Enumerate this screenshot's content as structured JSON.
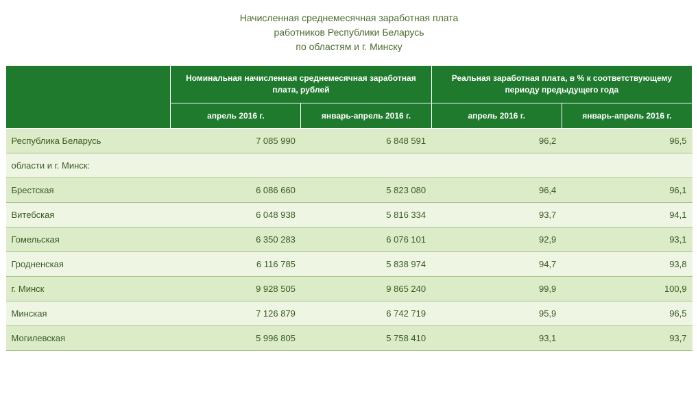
{
  "title": {
    "line1": "Начисленная среднемесячная заработная плата",
    "line2": "работников Республики Беларусь",
    "line3": "по областям и г. Минску"
  },
  "table": {
    "type": "table",
    "header_bg": "#1f7a2e",
    "header_fg": "#ffffff",
    "row_even_bg": "#dcebc8",
    "row_odd_bg": "#eef5e3",
    "border_color": "#a8c48c",
    "text_color": "#3a5a24",
    "font_size_header": 12,
    "font_size_body": 13,
    "group_headers": [
      "Номинальная начисленная  среднемесячная заработная плата, рублей",
      "Реальная заработная плата, в % к соответствующему периоду предыдущего года"
    ],
    "sub_headers": [
      "апрель 2016 г.",
      "январь-апрель 2016 г.",
      "апрель 2016 г.",
      "январь-апрель 2016 г."
    ],
    "columns_align": [
      "left",
      "right",
      "right",
      "right",
      "right"
    ],
    "rows": [
      {
        "label": "Республика Беларусь",
        "v": [
          "7 085 990",
          "6 848 591",
          "96,2",
          "96,5"
        ]
      },
      {
        "label": "области и г. Минск:",
        "v": [
          "",
          "",
          "",
          ""
        ]
      },
      {
        "label": "Брестская",
        "v": [
          "6 086 660",
          "5 823 080",
          "96,4",
          "96,1"
        ]
      },
      {
        "label": "Витебская",
        "v": [
          "6 048 938",
          "5 816 334",
          "93,7",
          "94,1"
        ]
      },
      {
        "label": "Гомельская",
        "v": [
          "6 350 283",
          "6 076 101",
          "92,9",
          "93,1"
        ]
      },
      {
        "label": "Гродненская",
        "v": [
          "6 116 785",
          "5 838 974",
          "94,7",
          "93,8"
        ]
      },
      {
        "label": "г. Минск",
        "v": [
          "9 928 505",
          "9 865 240",
          "99,9",
          "100,9"
        ]
      },
      {
        "label": "Минская",
        "v": [
          "7 126 879",
          "6 742 719",
          "95,9",
          "96,5"
        ]
      },
      {
        "label": "Могилевская",
        "v": [
          "5 996 805",
          "5 758 410",
          "93,1",
          "93,7"
        ]
      }
    ]
  }
}
